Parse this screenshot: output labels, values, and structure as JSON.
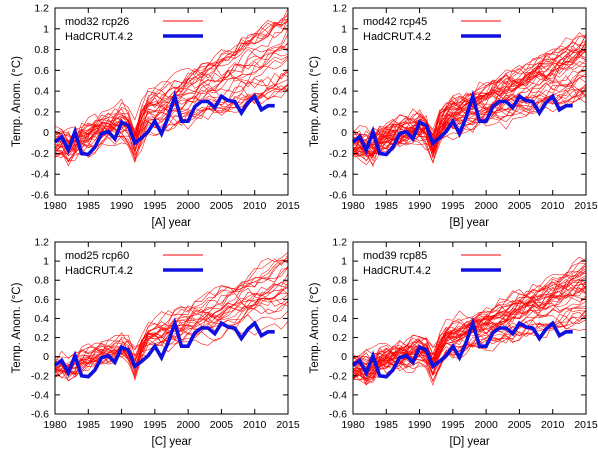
{
  "colors": {
    "model": "#ff0000",
    "obs": "#1010e0",
    "axis": "#000000"
  },
  "chart_data": [
    {
      "type": "line",
      "panel": "[A]",
      "xlabel": "year",
      "ylabel": "Temp. Anom. (°C)",
      "xlim": [
        1980,
        2015
      ],
      "ylim": [
        -0.6,
        1.2
      ],
      "xticks": [
        "1980",
        "1985",
        "1990",
        "1995",
        "2000",
        "2005",
        "2010",
        "2015"
      ],
      "yticks": [
        "-0.6",
        "-0.4",
        "-0.2",
        "0",
        "0.2",
        "0.4",
        "0.6",
        "0.8",
        "1",
        "1.2"
      ],
      "legend": [
        "mod32 rcp26",
        "HadCRUT.4.2"
      ],
      "legend_position": "top-left",
      "grid": false,
      "ensemble_size": 32,
      "ensemble_years": [
        1980,
        2015
      ],
      "ensemble_envelope_2015": [
        0.3,
        1.12
      ],
      "series": [
        {
          "name": "HadCRUT.4.2",
          "x": [
            1980,
            1981,
            1982,
            1983,
            1984,
            1985,
            1986,
            1987,
            1988,
            1989,
            1990,
            1991,
            1992,
            1993,
            1994,
            1995,
            1996,
            1997,
            1998,
            1999,
            2000,
            2001,
            2002,
            2003,
            2004,
            2005,
            2006,
            2007,
            2008,
            2009,
            2010,
            2011,
            2012,
            2013
          ],
          "y": [
            -0.09,
            -0.04,
            -0.17,
            0.01,
            -0.2,
            -0.21,
            -0.14,
            -0.01,
            0.01,
            -0.06,
            0.1,
            0.07,
            -0.1,
            -0.05,
            0.01,
            0.11,
            -0.01,
            0.15,
            0.35,
            0.11,
            0.11,
            0.25,
            0.3,
            0.3,
            0.24,
            0.35,
            0.31,
            0.3,
            0.19,
            0.29,
            0.35,
            0.22,
            0.26,
            0.26
          ]
        }
      ]
    },
    {
      "type": "line",
      "panel": "[B]",
      "xlabel": "year",
      "ylabel": "Temp. Anom. (°C)",
      "xlim": [
        1980,
        2015
      ],
      "ylim": [
        -0.6,
        1.2
      ],
      "xticks": [
        "1980",
        "1985",
        "1990",
        "1995",
        "2000",
        "2005",
        "2010",
        "2015"
      ],
      "yticks": [
        "-0.6",
        "-0.4",
        "-0.2",
        "0",
        "0.2",
        "0.4",
        "0.6",
        "0.8",
        "1",
        "1.2"
      ],
      "legend": [
        "mod42 rcp45",
        "HadCRUT.4.2"
      ],
      "legend_position": "top-left",
      "grid": false,
      "ensemble_size": 42,
      "ensemble_years": [
        1980,
        2015
      ],
      "ensemble_envelope_2015": [
        0.3,
        0.95
      ],
      "series": [
        {
          "name": "HadCRUT.4.2",
          "x": [
            1980,
            1981,
            1982,
            1983,
            1984,
            1985,
            1986,
            1987,
            1988,
            1989,
            1990,
            1991,
            1992,
            1993,
            1994,
            1995,
            1996,
            1997,
            1998,
            1999,
            2000,
            2001,
            2002,
            2003,
            2004,
            2005,
            2006,
            2007,
            2008,
            2009,
            2010,
            2011,
            2012,
            2013
          ],
          "y": [
            -0.09,
            -0.04,
            -0.17,
            0.01,
            -0.2,
            -0.21,
            -0.14,
            -0.01,
            0.01,
            -0.06,
            0.1,
            0.07,
            -0.1,
            -0.05,
            0.01,
            0.11,
            -0.01,
            0.15,
            0.35,
            0.11,
            0.11,
            0.25,
            0.3,
            0.3,
            0.24,
            0.35,
            0.31,
            0.3,
            0.19,
            0.29,
            0.35,
            0.22,
            0.26,
            0.26
          ]
        }
      ]
    },
    {
      "type": "line",
      "panel": "[C]",
      "xlabel": "year",
      "ylabel": "Temp. Anom. (°C)",
      "xlim": [
        1980,
        2015
      ],
      "ylim": [
        -0.6,
        1.2
      ],
      "xticks": [
        "1980",
        "1985",
        "1990",
        "1995",
        "2000",
        "2005",
        "2010",
        "2015"
      ],
      "yticks": [
        "-0.6",
        "-0.4",
        "-0.2",
        "0",
        "0.2",
        "0.4",
        "0.6",
        "0.8",
        "1",
        "1.2"
      ],
      "legend": [
        "mod25 rcp60",
        "HadCRUT.4.2"
      ],
      "legend_position": "top-left",
      "grid": false,
      "ensemble_size": 25,
      "ensemble_years": [
        1980,
        2015
      ],
      "ensemble_envelope_2015": [
        0.3,
        1.08
      ],
      "series": [
        {
          "name": "HadCRUT.4.2",
          "x": [
            1980,
            1981,
            1982,
            1983,
            1984,
            1985,
            1986,
            1987,
            1988,
            1989,
            1990,
            1991,
            1992,
            1993,
            1994,
            1995,
            1996,
            1997,
            1998,
            1999,
            2000,
            2001,
            2002,
            2003,
            2004,
            2005,
            2006,
            2007,
            2008,
            2009,
            2010,
            2011,
            2012,
            2013
          ],
          "y": [
            -0.09,
            -0.04,
            -0.17,
            0.01,
            -0.2,
            -0.21,
            -0.14,
            -0.01,
            0.01,
            -0.06,
            0.1,
            0.07,
            -0.1,
            -0.05,
            0.01,
            0.11,
            -0.01,
            0.15,
            0.35,
            0.11,
            0.11,
            0.25,
            0.3,
            0.3,
            0.24,
            0.35,
            0.31,
            0.3,
            0.19,
            0.29,
            0.35,
            0.22,
            0.26,
            0.26
          ]
        }
      ]
    },
    {
      "type": "line",
      "panel": "[D]",
      "xlabel": "year",
      "ylabel": "Temp. Anom. (°C)",
      "xlim": [
        1980,
        2015
      ],
      "ylim": [
        -0.6,
        1.2
      ],
      "xticks": [
        "1980",
        "1985",
        "1990",
        "1995",
        "2000",
        "2005",
        "2010",
        "2015"
      ],
      "yticks": [
        "-0.6",
        "-0.4",
        "-0.2",
        "0",
        "0.2",
        "0.4",
        "0.6",
        "0.8",
        "1",
        "1.2"
      ],
      "legend": [
        "mod39 rcp85",
        "HadCRUT.4.2"
      ],
      "legend_position": "top-left",
      "grid": false,
      "ensemble_size": 39,
      "ensemble_years": [
        1980,
        2015
      ],
      "ensemble_envelope_2015": [
        0.35,
        1.0
      ],
      "series": [
        {
          "name": "HadCRUT.4.2",
          "x": [
            1980,
            1981,
            1982,
            1983,
            1984,
            1985,
            1986,
            1987,
            1988,
            1989,
            1990,
            1991,
            1992,
            1993,
            1994,
            1995,
            1996,
            1997,
            1998,
            1999,
            2000,
            2001,
            2002,
            2003,
            2004,
            2005,
            2006,
            2007,
            2008,
            2009,
            2010,
            2011,
            2012,
            2013
          ],
          "y": [
            -0.09,
            -0.04,
            -0.17,
            0.01,
            -0.2,
            -0.21,
            -0.14,
            -0.01,
            0.01,
            -0.06,
            0.1,
            0.07,
            -0.1,
            -0.05,
            0.01,
            0.11,
            -0.01,
            0.15,
            0.35,
            0.11,
            0.11,
            0.25,
            0.3,
            0.3,
            0.24,
            0.35,
            0.31,
            0.3,
            0.19,
            0.29,
            0.35,
            0.22,
            0.26,
            0.26
          ]
        }
      ]
    }
  ]
}
